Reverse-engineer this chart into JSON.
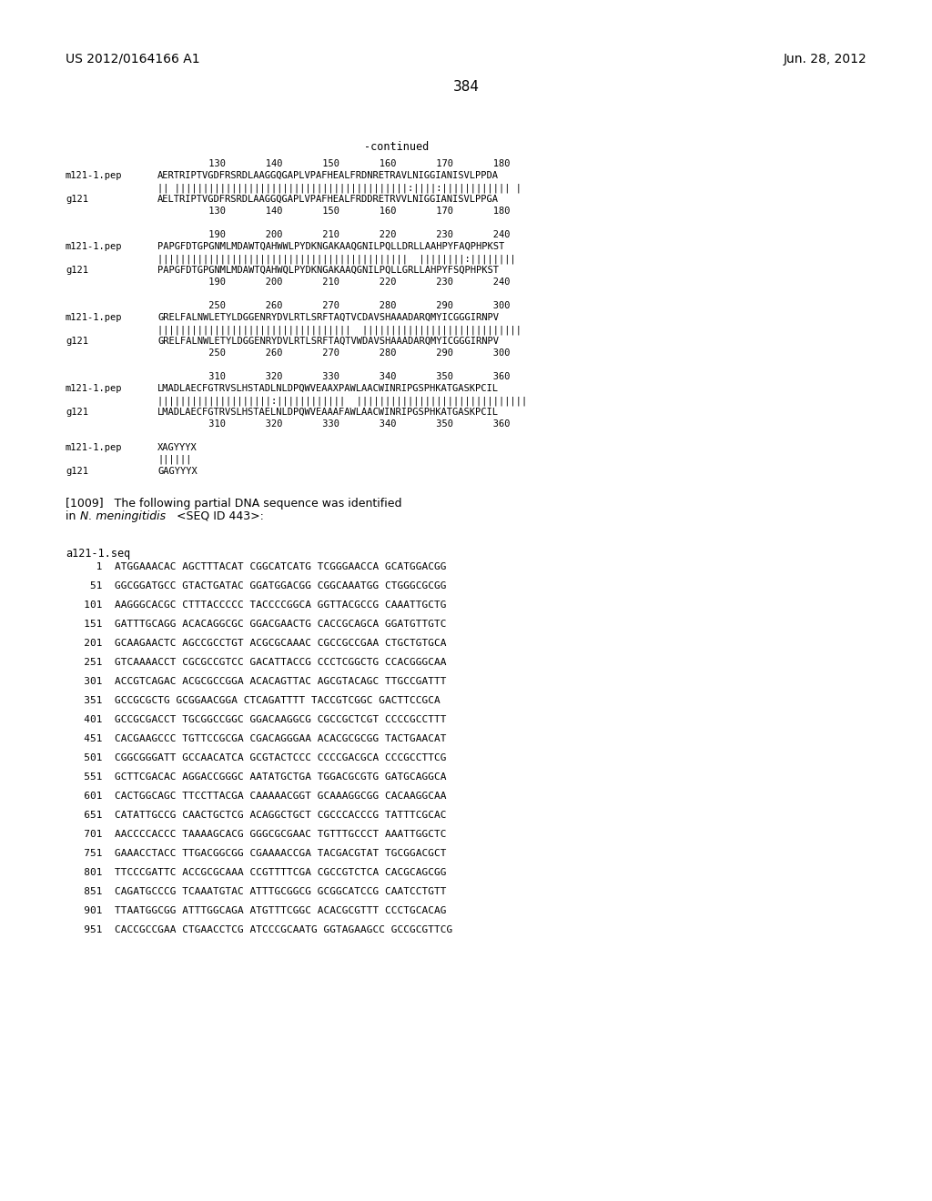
{
  "header_left": "US 2012/0164166 A1",
  "header_right": "Jun. 28, 2012",
  "page_number": "384",
  "continued_label": "-continued",
  "background_color": "#ffffff",
  "text_color": "#000000",
  "alignment_blocks": [
    {
      "nums_top": "         130       140       150       160       170       180",
      "label1": "m121-1.pep",
      "seq1": "AERTRIPTVGDFRSRDLAAGGQGAPLVPAFHEALFRDNRETRAVLNIGGIANISVLPPDA",
      "match": "|| |||||||||||||||||||||||||||||||||||||||||:||||:|||||||||||| |",
      "label2": "g121",
      "seq2": "AELTRIPTVGDFRSRDLAAGGQGAPLVPAFHEALFRDDRETRVVLNIGGIANISVLPPGA",
      "nums_bot": "         130       140       150       160       170       180"
    },
    {
      "nums_top": "         190       200       210       220       230       240",
      "label1": "m121-1.pep",
      "seq1": "PAPGFDTGPGNMLMDAWTQAHWWLPYDKNGAKAAQGNILPQLLDRLLAAHPYFAQPHPKST",
      "match": "||||||||||||||||||||||||||||||||||||||||||||  ||||||||:||||||||",
      "label2": "g121",
      "seq2": "PAPGFDTGPGNMLMDAWTQAHWQLPYDKNGAKAAQGNILPQLLGRLLAHPYFSQPHPKST",
      "nums_bot": "         190       200       210       220       230       240"
    },
    {
      "nums_top": "         250       260       270       280       290       300",
      "label1": "m121-1.pep",
      "seq1": "GRELFALNWLETYLDGGENRYDVLRTLSRFTAQTVCDAVSHAAADARQMYICGGGIRNPV",
      "match": "||||||||||||||||||||||||||||||||||  ||||||||||||||||||||||||||||",
      "label2": "g121",
      "seq2": "GRELFALNWLETYLDGGENRYDVLRTLSRFTAQTVWDAVSHAAADARQMYICGGGIRNPV",
      "nums_bot": "         250       260       270       280       290       300"
    },
    {
      "nums_top": "         310       320       330       340       350       360",
      "label1": "m121-1.pep",
      "seq1": "LMADLAECFGTRVSLHSTADLNLDPQWVEAAXPAWLAACWINRIPGSPHKATGASKPCIL",
      "match": "||||||||||||||||||||:||||||||||||  ||||||||||||||||||||||||||||||",
      "label2": "g121",
      "seq2": "LMADLAECFGTRVSLHSTAELNLDPQWVEAAAFAWLAACWINRIPGSPHKATGASKPCIL",
      "nums_bot": "         310       320       330       340       350       360"
    },
    {
      "nums_top": "",
      "label1": "m121-1.pep",
      "seq1": "XAGYYYX",
      "match": "||||||",
      "label2": "g121",
      "seq2": "GAGYYYX",
      "nums_bot": ""
    }
  ],
  "paragraph_bold": "[1009]",
  "paragraph_rest": "   The following partial DNA sequence was identified",
  "paragraph_line2_pre": "in ",
  "paragraph_line2_italic": "N. meningitidis",
  "paragraph_line2_post": " <SEQ ID 443>:",
  "seq_label": "a121-1.seq",
  "dna_lines": [
    "     1  ATGGAAACAC AGCTTTACAT CGGCATCATG TCGGGAACCA GCATGGACGG",
    "    51  GGCGGATGCC GTACTGATAC GGATGGACGG CGGCAAATGG CTGGGCGCGG",
    "   101  AAGGGCACGC CTTTACCCCC TACCCCGGCA GGTTACGCCG CAAATTGCTG",
    "   151  GATTTGCAGG ACACAGGCGC GGACGAACTG CACCGCAGCA GGATGTTGTC",
    "   201  GCAAGAACTC AGCCGCCTGT ACGCGCAAAC CGCCGCCGAA CTGCTGTGCA",
    "   251  GTCAAAACCT CGCGCCGTCC GACATTACCG CCCTCGGCTG CCACGGGCAA",
    "   301  ACCGTCAGAC ACGCGCCGGA ACACAGTTAC AGCGTACAGC TTGCCGATTT",
    "   351  GCCGCGCTG GCGGAACGGA CTCAGATTTT TACCGTCGGC GACTTCCGCA",
    "   401  GCCGCGACCT TGCGGCCGGC GGACAAGGCG CGCCGCTCGT CCCCGCCTTT",
    "   451  CACGAAGCCC TGTTCCGCGA CGACAGGGAA ACACGCGCGG TACTGAACAT",
    "   501  CGGCGGGATT GCCAACATCA GCGTACTCCC CCCCGACGCA CCCGCCTTCG",
    "   551  GCTTCGACAC AGGACCGGGC AATATGCTGA TGGACGCGTG GATGCAGGCA",
    "   601  CACTGGCAGC TTCCTTACGA CAAAAACGGT GCAAAGGCGG CACAAGGCAA",
    "   651  CATATTGCCG CAACTGCTCG ACAGGCTGCT CGCCCACCCG TATTTCGCAC",
    "   701  AACCCCACCC TAAAAGCACG GGGCGCGAAC TGTTTGCCCT AAATTGGCTC",
    "   751  GAAACCTACC TTGACGGCGG CGAAAACCGA TACGACGTAT TGCGGACGCT",
    "   801  TTCCCGATTC ACCGCGCAAA CCGTTTTCGA CGCCGTCTCA CACGCAGCGG",
    "   851  CAGATGCCCG TCAAATGTAC ATTTGCGGCG GCGGCATCCG CAATCCTGTT",
    "   901  TTAATGGCGG ATTTGGCAGA ATGTTTCGGC ACACGCGTTT CCCTGCACAG",
    "   951  CACCGCCGAA CTGAACCTCG ATCCCGCAATG GGTAGAAGCC GCCGCGTTCG"
  ]
}
